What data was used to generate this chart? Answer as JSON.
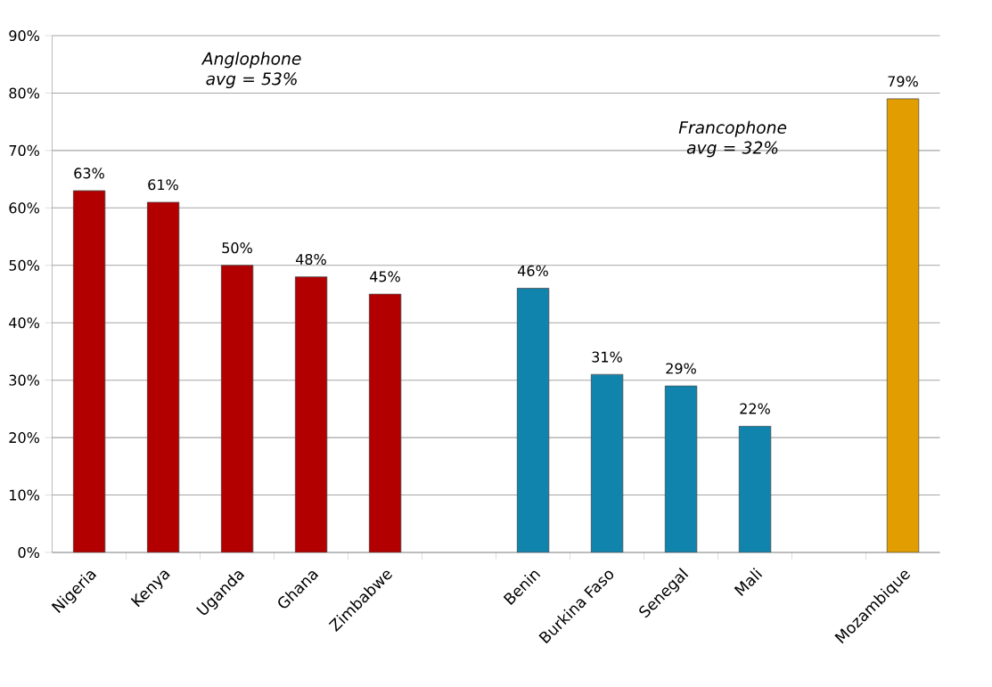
{
  "chart_data": {
    "type": "bar",
    "categories": [
      "Nigeria",
      "Kenya",
      "Uganda",
      "Ghana",
      "Zimbabwe",
      null,
      "Benin",
      "Burkina Faso",
      "Senegal",
      "Mali",
      null,
      "Mozambique"
    ],
    "values": [
      63,
      61,
      50,
      48,
      45,
      null,
      46,
      31,
      29,
      22,
      null,
      79
    ],
    "colors": [
      "#b20000",
      "#b20000",
      "#b20000",
      "#b20000",
      "#b20000",
      null,
      "#1184ae",
      "#1184ae",
      "#1184ae",
      "#1184ae",
      null,
      "#e29e00"
    ],
    "value_labels": [
      "63%",
      "61%",
      "50%",
      "48%",
      "45%",
      null,
      "46%",
      "31%",
      "29%",
      "22%",
      null,
      "79%"
    ],
    "ylim": [
      0,
      90
    ],
    "yticks": [
      {
        "value": 0,
        "label": "0%"
      },
      {
        "value": 10,
        "label": "10%"
      },
      {
        "value": 20,
        "label": "20%"
      },
      {
        "value": 30,
        "label": "30%"
      },
      {
        "value": 40,
        "label": "40%"
      },
      {
        "value": 50,
        "label": "50%"
      },
      {
        "value": 60,
        "label": "60%"
      },
      {
        "value": 70,
        "label": "70%"
      },
      {
        "value": 80,
        "label": "80%"
      },
      {
        "value": 90,
        "label": "90%"
      }
    ],
    "grid": "y",
    "annotations": [
      "Anglophone avg = 53%",
      "Francophone avg = 32%"
    ]
  }
}
